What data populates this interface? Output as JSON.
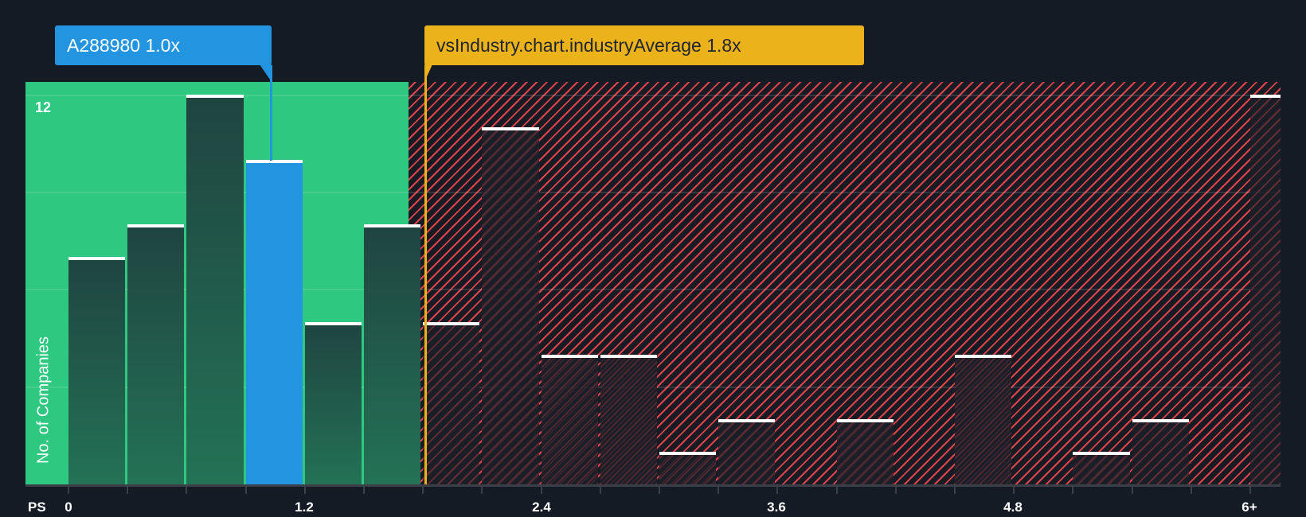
{
  "callouts": {
    "company": {
      "label": "A288980 1.0x",
      "color": "#2394e0"
    },
    "industry": {
      "label": "vsIndustry.chart.industryAverage 1.8x",
      "color": "#ecb21a"
    }
  },
  "axis": {
    "x_title": "PS",
    "y_title": "No. of Companies",
    "y_top_tick": "12",
    "x_ticks": [
      "0",
      "1.2",
      "2.4",
      "3.6",
      "4.8",
      "6+"
    ]
  },
  "colors": {
    "good_zone": "#2ec880",
    "bad_zone_hatch": "#e0434a",
    "highlight": "#2394e0",
    "background": "#151b24"
  },
  "chart_data": {
    "type": "bar",
    "title": "",
    "xlabel": "PS",
    "ylabel": "No. of Companies",
    "ylim": [
      0,
      12
    ],
    "grid": true,
    "categories": [
      "0-0.3",
      "0.3-0.6",
      "0.6-0.9",
      "0.9-1.2",
      "1.2-1.5",
      "1.5-1.8",
      "1.8-2.1",
      "2.1-2.4",
      "2.4-2.7",
      "2.7-3.0",
      "3.0-3.3",
      "3.3-3.6",
      "3.6-3.9",
      "3.9-4.2",
      "4.2-4.5",
      "4.5-4.8",
      "4.8-5.1",
      "5.1-5.4",
      "5.4-5.7",
      "5.7-6.0",
      "6+"
    ],
    "values": [
      7,
      8,
      12,
      10,
      5,
      8,
      5,
      11,
      4,
      4,
      1,
      2,
      0,
      2,
      0,
      4,
      0,
      1,
      2,
      0,
      12
    ],
    "highlight_index": 3,
    "company_value": 1.0,
    "industry_average": 1.8,
    "x_tick_labels": [
      "0",
      "1.2",
      "2.4",
      "3.6",
      "4.8",
      "6+"
    ],
    "annotations": [
      "A288980 1.0x",
      "vsIndustry.chart.industryAverage 1.8x"
    ]
  }
}
